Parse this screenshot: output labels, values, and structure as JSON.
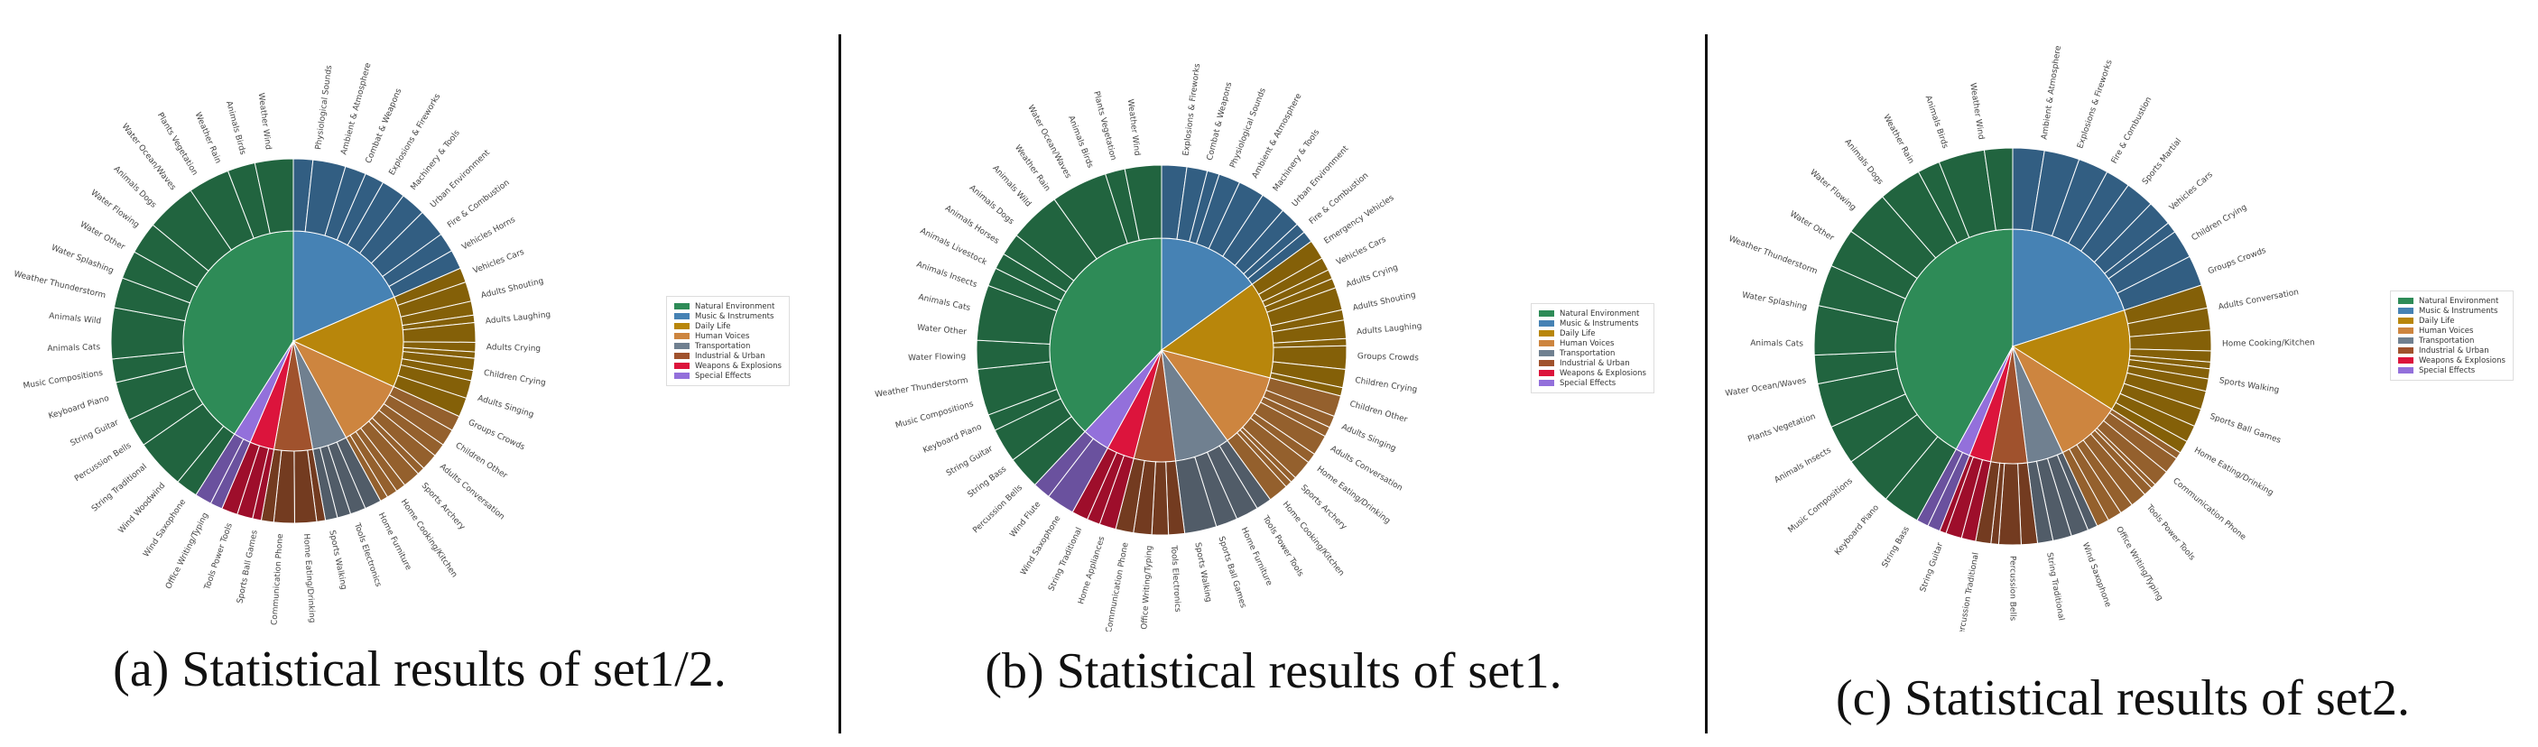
{
  "colors": {
    "Natural Environment": "#2e8b57",
    "Music & Instruments": "#4682b4",
    "Daily Life": "#b8860b",
    "Human Voices": "#cd853f",
    "Transportation": "#708090",
    "Industrial & Urban": "#a0522d",
    "Weapons & Explosions": "#dc143c",
    "Special Effects": "#9370db"
  },
  "legend": {
    "items": [
      "Natural Environment",
      "Music & Instruments",
      "Daily Life",
      "Human Voices",
      "Transportation",
      "Industrial & Urban",
      "Weapons & Explosions",
      "Special Effects"
    ]
  },
  "chart_data": [
    {
      "type": "sunburst",
      "caption": "(a) Statistical results of set1/2.",
      "inner": [
        {
          "category": "Natural Environment",
          "value": 40
        },
        {
          "category": "Music & Instruments",
          "value": 18
        },
        {
          "category": "Daily Life",
          "value": 13
        },
        {
          "category": "Human Voices",
          "value": 10
        },
        {
          "category": "Transportation",
          "value": 5
        },
        {
          "category": "Industrial & Urban",
          "value": 5.5
        },
        {
          "category": "Weapons & Explosions",
          "value": 3.5
        },
        {
          "category": "Special Effects",
          "value": 2.5
        }
      ],
      "labels": [
        "Physiological Sounds",
        "Ambient & Atmosphere",
        "Combat & Weapons",
        "Explosions & Fireworks",
        "Machinery & Tools",
        "Urban Environment",
        "Fire & Combustion",
        "Vehicles Horns",
        "Vehicles Cars",
        "Adults Shouting",
        "Adults Laughing",
        "Adults Crying",
        "Children Crying",
        "Adults Singing",
        "Groups Crowds",
        "Children Other",
        "Adults Conversation",
        "Sports Archery",
        "Home Cooking/Kitchen",
        "Home Furniture",
        "Tools Electronics",
        "Sports Walking",
        "Home Eating/Drinking",
        "Communication Phone",
        "Sports Ball Games",
        "Tools Power Tools",
        "Office Writing/Typing",
        "Wind Saxophone",
        "Wind Woodwind",
        "String Traditional",
        "Percussion Bells",
        "String Guitar",
        "Keyboard Piano",
        "Music Compositions",
        "Animals Cats",
        "Animals Wild",
        "Weather Thunderstorm",
        "Water Splashing",
        "Water Other",
        "Water Flowing",
        "Animals Dogs",
        "Water Ocean/Waves",
        "Plants Vegetation",
        "Weather Rain",
        "Animals Birds",
        "Weather Wind"
      ]
    },
    {
      "type": "sunburst",
      "caption": "(b) Statistical results of set1.",
      "inner": [
        {
          "category": "Natural Environment",
          "value": 38
        },
        {
          "category": "Music & Instruments",
          "value": 15
        },
        {
          "category": "Daily Life",
          "value": 14
        },
        {
          "category": "Human Voices",
          "value": 11
        },
        {
          "category": "Transportation",
          "value": 8
        },
        {
          "category": "Industrial & Urban",
          "value": 6
        },
        {
          "category": "Weapons & Explosions",
          "value": 4
        },
        {
          "category": "Special Effects",
          "value": 4
        }
      ],
      "labels": [
        "Explosions & Fireworks",
        "Combat & Weapons",
        "Physiological Sounds",
        "Ambient & Atmosphere",
        "Machinery & Tools",
        "Urban Environment",
        "Fire & Combustion",
        "Emergency Vehicles",
        "Vehicles Cars",
        "Adults Crying",
        "Adults Shouting",
        "Adults Laughing",
        "Groups Crowds",
        "Children Crying",
        "Children Other",
        "Adults Singing",
        "Adults Conversation",
        "Home Eating/Drinking",
        "Sports Archery",
        "Home Cooking/Kitchen",
        "Tools Power Tools",
        "Home Furniture",
        "Sports Ball Games",
        "Sports Walking",
        "Tools Electronics",
        "Office Writing/Typing",
        "Communication Phone",
        "Home Appliances",
        "String Traditional",
        "Wind Saxophone",
        "Wind Flute",
        "Percussion Bells",
        "String Bass",
        "String Guitar",
        "Keyboard Piano",
        "Music Compositions",
        "Weather Thunderstorm",
        "Water Flowing",
        "Water Other",
        "Animals Cats",
        "Animals Insects",
        "Animals Livestock",
        "Animals Horses",
        "Animals Dogs",
        "Animals Wild",
        "Weather Rain",
        "Water Ocean/Waves",
        "Animals Birds",
        "Plants Vegetation",
        "Weather Wind"
      ]
    },
    {
      "type": "sunburst",
      "caption": "(c) Statistical results of set2.",
      "inner": [
        {
          "category": "Natural Environment",
          "value": 42
        },
        {
          "category": "Music & Instruments",
          "value": 20
        },
        {
          "category": "Daily Life",
          "value": 14
        },
        {
          "category": "Human Voices",
          "value": 9
        },
        {
          "category": "Transportation",
          "value": 5
        },
        {
          "category": "Industrial & Urban",
          "value": 5
        },
        {
          "category": "Weapons & Explosions",
          "value": 3
        },
        {
          "category": "Special Effects",
          "value": 2
        }
      ],
      "labels": [
        "Ambient & Atmosphere",
        "Explosions & Fireworks",
        "Fire & Combustion",
        "Sports Martial",
        "Vehicles Cars",
        "Children Crying",
        "Groups Crowds",
        "Adults Conversation",
        "Home Cooking/Kitchen",
        "Sports Walking",
        "Sports Ball Games",
        "Home Eating/Drinking",
        "Communication Phone",
        "Tools Power Tools",
        "Office Writing/Typing",
        "Wind Saxophone",
        "String Traditional",
        "Percussion Bells",
        "Percussion Traditional",
        "String Guitar",
        "String Bass",
        "Keyboard Piano",
        "Music Compositions",
        "Animals Insects",
        "Plants Vegetation",
        "Water Ocean/Waves",
        "Animals Cats",
        "Water Splashing",
        "Weather Thunderstorm",
        "Water Other",
        "Water Flowing",
        "Animals Dogs",
        "Weather Rain",
        "Animals Birds",
        "Weather Wind"
      ]
    }
  ]
}
